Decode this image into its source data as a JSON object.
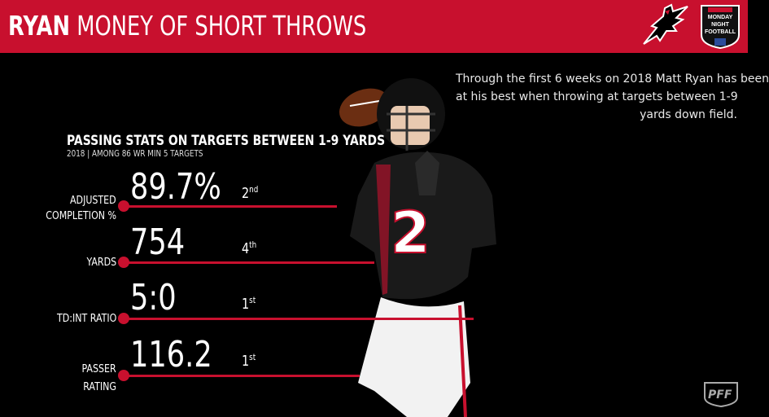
{
  "header": {
    "title_bold": "RYAN",
    "title_rest": "MONEY OF SHORT THROWS",
    "color": "#c8102e"
  },
  "logos": {
    "falcons": "falcons-logo-icon",
    "mnf": {
      "line1": "MONDAY",
      "line2": "NIGHT",
      "line3": "FOOTBALL"
    },
    "pff": "pff-logo-icon"
  },
  "description": {
    "line1": "Through the first 6 weeks on 2018 Matt Ryan has been",
    "line2": "at his best when throwing at targets between 1-9",
    "line3": "yards down field."
  },
  "section": {
    "title": "PASSING STATS ON TARGETS BETWEEN 1-9 YARDS",
    "subtitle": "2018 | AMONG 86 WR MIN 5 TARGETS"
  },
  "stats": [
    {
      "label_line1": "ADJUSTED",
      "label_line2": "COMPLETION %",
      "value": "89.7%",
      "rank_num": "2",
      "rank_suffix": "nd"
    },
    {
      "label_line1": "YARDS",
      "label_line2": "",
      "value": "754",
      "rank_num": "4",
      "rank_suffix": "th"
    },
    {
      "label_line1": "TD:INT RATIO",
      "label_line2": "",
      "value": "5:0",
      "rank_num": "1",
      "rank_suffix": "st"
    },
    {
      "label_line1": "PASSER",
      "label_line2": "RATING",
      "value": "116.2",
      "rank_num": "1",
      "rank_suffix": "st"
    }
  ],
  "player": {
    "jersey_number": "2"
  }
}
